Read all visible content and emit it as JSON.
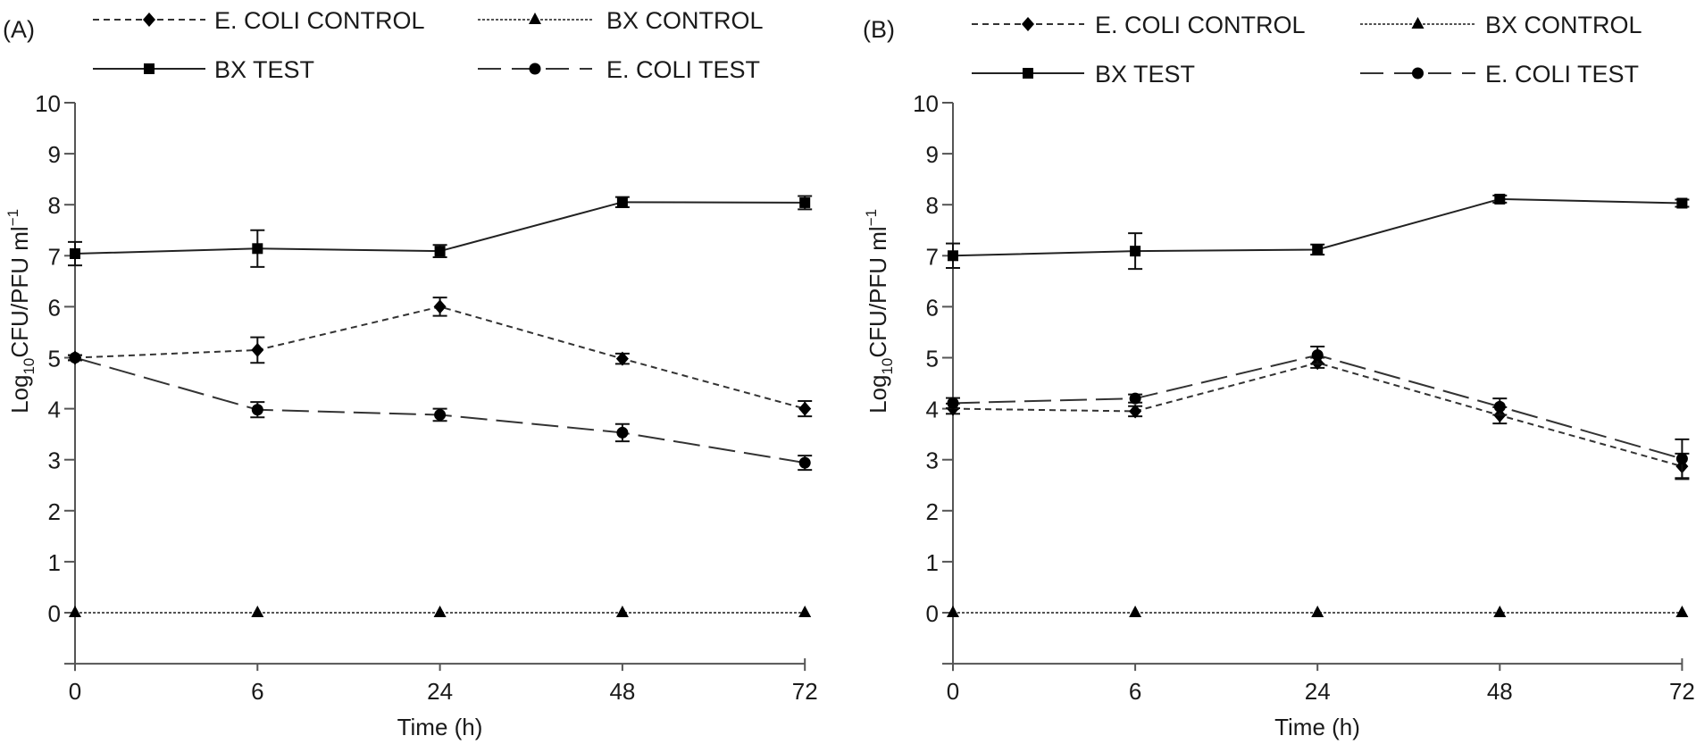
{
  "chart_data": [
    {
      "type": "line",
      "panel_label": "(A)",
      "x": [
        0,
        6,
        24,
        48,
        72
      ],
      "x_categories": [
        "0",
        "6",
        "24",
        "48",
        "72"
      ],
      "xlabel": "Time (h)",
      "ylabel_main": "Log",
      "ylabel_sub": "10",
      "ylabel_rest": "CFU/PFU ml",
      "ylabel_sup": "−1",
      "ylim": [
        -1,
        10
      ],
      "yticks": [
        0,
        1,
        2,
        3,
        4,
        5,
        6,
        7,
        8,
        9,
        10
      ],
      "grid": false,
      "legend_position": "top",
      "series": [
        {
          "name": "E. COLI CONTROL",
          "marker": "diamond",
          "line": "dashed",
          "values": [
            5.0,
            5.15,
            6.0,
            4.98,
            4.0
          ],
          "errors": [
            0.05,
            0.25,
            0.18,
            0.1,
            0.15
          ]
        },
        {
          "name": "BX CONTROL",
          "marker": "triangle",
          "line": "dotted",
          "values": [
            0,
            0,
            0,
            0,
            0
          ],
          "errors": [
            0,
            0,
            0,
            0,
            0
          ]
        },
        {
          "name": "BX TEST",
          "marker": "square",
          "line": "solid",
          "values": [
            7.04,
            7.14,
            7.09,
            8.05,
            8.04
          ],
          "errors": [
            0.23,
            0.36,
            0.12,
            0.1,
            0.13
          ]
        },
        {
          "name": "E. COLI TEST",
          "marker": "circle",
          "line": "longdash",
          "values": [
            5.0,
            3.98,
            3.88,
            3.53,
            2.94
          ],
          "errors": [
            0.05,
            0.15,
            0.12,
            0.17,
            0.14
          ]
        }
      ]
    },
    {
      "type": "line",
      "panel_label": "(B)",
      "x": [
        0,
        6,
        24,
        48,
        72
      ],
      "x_categories": [
        "0",
        "6",
        "24",
        "48",
        "72"
      ],
      "xlabel": "Time (h)",
      "ylabel_main": "Log",
      "ylabel_sub": "10",
      "ylabel_rest": "CFU/PFU ml",
      "ylabel_sup": "−1",
      "ylim": [
        -1,
        10
      ],
      "yticks": [
        0,
        1,
        2,
        3,
        4,
        5,
        6,
        7,
        8,
        9,
        10
      ],
      "grid": false,
      "legend_position": "top",
      "series": [
        {
          "name": "E. COLI CONTROL",
          "marker": "diamond",
          "line": "dashed",
          "values": [
            4.0,
            3.95,
            4.9,
            3.87,
            2.87
          ],
          "errors": [
            0.1,
            0.1,
            0.1,
            0.16,
            0.25
          ]
        },
        {
          "name": "BX CONTROL",
          "marker": "triangle",
          "line": "dotted",
          "values": [
            0,
            0,
            0,
            0,
            0
          ],
          "errors": [
            0,
            0,
            0,
            0,
            0
          ]
        },
        {
          "name": "BX TEST",
          "marker": "square",
          "line": "solid",
          "values": [
            7.0,
            7.09,
            7.12,
            8.11,
            8.03
          ],
          "errors": [
            0.24,
            0.35,
            0.1,
            0.07,
            0.07
          ]
        },
        {
          "name": "E. COLI TEST",
          "marker": "circle",
          "line": "longdash",
          "values": [
            4.11,
            4.2,
            5.05,
            4.04,
            3.02
          ],
          "errors": [
            0.1,
            0.08,
            0.17,
            0.16,
            0.38
          ]
        }
      ]
    }
  ]
}
